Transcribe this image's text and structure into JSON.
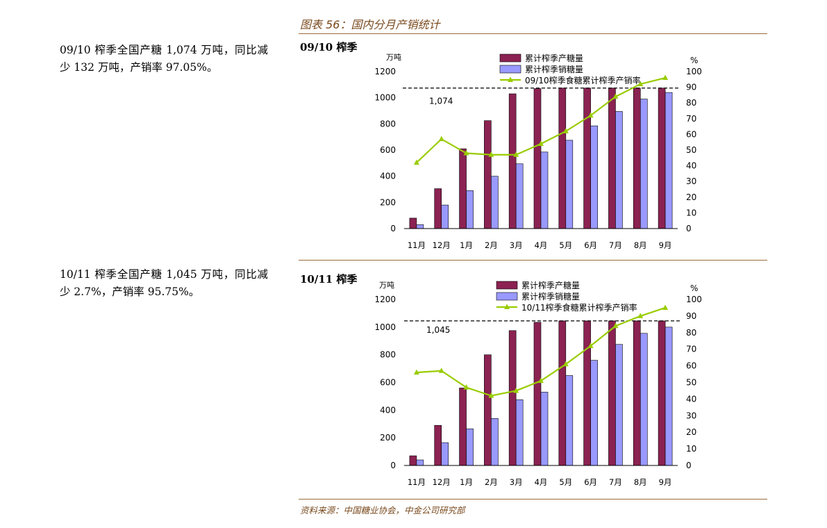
{
  "figure_title": "图表 56：国内分月产销统计",
  "source": "资料来源：中国糖业协会，中金公司研究部",
  "panels": [
    {
      "description": "09/10 榨季全国产糖 1,074 万吨，同比减少 132 万吨，产销率 97.05%。",
      "title": "09/10 榨季"
    },
    {
      "description": "10/11 榨季全国产糖 1,045 万吨，同比减少 2.7%，产销率 95.75%。",
      "title": "10/11 榨季"
    }
  ],
  "chart_data": [
    {
      "type": "bar",
      "categories": [
        "11月",
        "12月",
        "1月",
        "2月",
        "3月",
        "4月",
        "5月",
        "6月",
        "7月",
        "8月",
        "9月"
      ],
      "series": [
        {
          "name": "累计榨季产糖量",
          "kind": "bar",
          "axis": "left",
          "color": "#8b2252",
          "values": [
            80,
            305,
            610,
            825,
            1030,
            1070,
            1074,
            1074,
            1074,
            1074,
            1074
          ]
        },
        {
          "name": "累计榨季销糖量",
          "kind": "bar",
          "axis": "left",
          "color": "#9999ff",
          "values": [
            30,
            180,
            290,
            400,
            495,
            585,
            675,
            785,
            895,
            990,
            1040
          ]
        },
        {
          "name": "09/10榨季食糖累计榨季产销率",
          "kind": "line",
          "axis": "right",
          "color": "#99cc00",
          "values": [
            42,
            57,
            48,
            47,
            47,
            54,
            62,
            72,
            84,
            92,
            96
          ]
        }
      ],
      "ylabel": "万吨",
      "y2label": "%",
      "ylim": [
        0,
        1200
      ],
      "yticks": [
        0,
        200,
        400,
        600,
        800,
        1000,
        1200
      ],
      "y2lim": [
        0,
        100
      ],
      "y2ticks": [
        0,
        10,
        20,
        30,
        40,
        50,
        60,
        70,
        80,
        90,
        100
      ],
      "reference_line": {
        "value": 1074,
        "label": "1,074"
      },
      "legend": "top-center"
    },
    {
      "type": "bar",
      "categories": [
        "11月",
        "12月",
        "1月",
        "2月",
        "3月",
        "4月",
        "5月",
        "6月",
        "7月",
        "8月",
        "9月"
      ],
      "series": [
        {
          "name": "累计榨季产糖量",
          "kind": "bar",
          "axis": "left",
          "color": "#8b2252",
          "values": [
            70,
            290,
            560,
            800,
            975,
            1035,
            1045,
            1045,
            1045,
            1045,
            1045
          ]
        },
        {
          "name": "累计榨季销糖量",
          "kind": "bar",
          "axis": "left",
          "color": "#9999ff",
          "values": [
            40,
            165,
            265,
            340,
            475,
            530,
            650,
            760,
            875,
            955,
            1000
          ]
        },
        {
          "name": "10/11榨季食糖累计榨季产销率",
          "kind": "line",
          "axis": "right",
          "color": "#99cc00",
          "values": [
            56,
            57,
            47,
            42,
            45,
            51,
            61,
            72,
            84,
            90,
            95
          ]
        }
      ],
      "ylabel": "万吨",
      "y2label": "%",
      "ylim": [
        0,
        1200
      ],
      "yticks": [
        0,
        200,
        400,
        600,
        800,
        1000,
        1200
      ],
      "y2lim": [
        0,
        100
      ],
      "y2ticks": [
        0,
        10,
        20,
        30,
        40,
        50,
        60,
        70,
        80,
        90,
        100
      ],
      "reference_line": {
        "value": 1045,
        "label": "1,045"
      },
      "legend": "top-center"
    }
  ]
}
